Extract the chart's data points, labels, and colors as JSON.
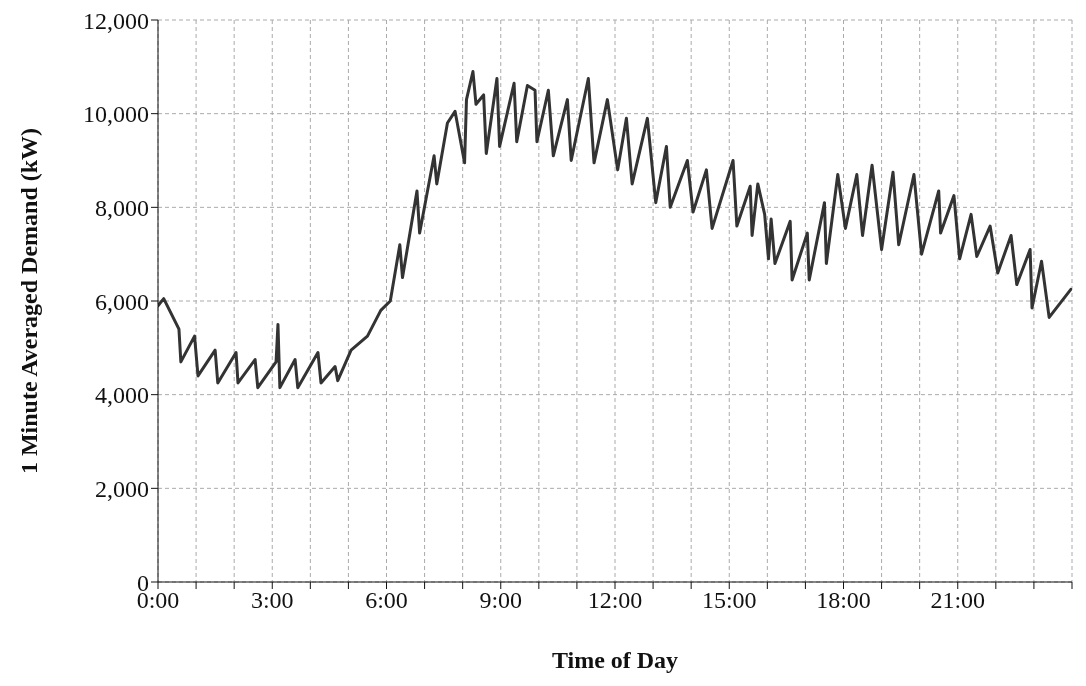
{
  "chart_data": {
    "type": "line",
    "xlabel": "Time of Day",
    "ylabel": "1 Minute Averaged Demand (kW)",
    "x": [
      0,
      0.15,
      0.55,
      0.6,
      0.96,
      1.05,
      1.5,
      1.57,
      2.05,
      2.1,
      2.55,
      2.62,
      3.1,
      3.15,
      3.2,
      3.6,
      3.67,
      4.2,
      4.28,
      4.65,
      4.72,
      5.07,
      5.5,
      5.85,
      6.1,
      6.35,
      6.42,
      6.8,
      6.87,
      7.25,
      7.32,
      7.6,
      7.8,
      8.05,
      8.1,
      8.27,
      8.35,
      8.55,
      8.62,
      8.9,
      8.97,
      9.35,
      9.42,
      9.7,
      9.9,
      9.95,
      10.25,
      10.38,
      10.75,
      10.85,
      11.3,
      11.45,
      11.8,
      12.07,
      12.3,
      12.45,
      12.85,
      13.07,
      13.35,
      13.45,
      13.9,
      14.05,
      14.4,
      14.55,
      15.1,
      15.2,
      15.55,
      15.6,
      15.75,
      15.93,
      16.03,
      16.1,
      16.2,
      16.6,
      16.65,
      17.05,
      17.1,
      17.5,
      17.55,
      17.85,
      18.05,
      18.35,
      18.5,
      18.75,
      19.0,
      19.3,
      19.45,
      19.85,
      20.05,
      20.5,
      20.55,
      20.9,
      21.05,
      21.35,
      21.5,
      21.85,
      22.05,
      22.4,
      22.55,
      22.9,
      22.95,
      23.2,
      23.4,
      23.97
    ],
    "series": [
      {
        "color": "#333333",
        "values": [
          5900,
          6050,
          5400,
          4700,
          5250,
          4400,
          4950,
          4250,
          4900,
          4250,
          4750,
          4150,
          4700,
          5500,
          4150,
          4750,
          4150,
          4900,
          4250,
          4600,
          4300,
          4950,
          5250,
          5800,
          6000,
          7200,
          6500,
          8350,
          7450,
          9100,
          8500,
          9800,
          10050,
          8950,
          10300,
          10900,
          10200,
          10400,
          9150,
          10750,
          9300,
          10650,
          9400,
          10600,
          10500,
          9400,
          10500,
          9100,
          10300,
          9000,
          10750,
          8950,
          10300,
          8800,
          9900,
          8500,
          9900,
          8100,
          9300,
          8000,
          9000,
          7900,
          8800,
          7550,
          9000,
          7600,
          8450,
          7400,
          8500,
          7850,
          6900,
          7750,
          6800,
          7700,
          6450,
          7450,
          6450,
          8100,
          6800,
          8700,
          7550,
          8700,
          7400,
          8900,
          7100,
          8750,
          7200,
          8700,
          7000,
          8350,
          7450,
          8250,
          6900,
          7850,
          6950,
          7600,
          6600,
          7400,
          6350,
          7100,
          5850,
          6850,
          5650,
          6250
        ]
      }
    ],
    "xlim": [
      0,
      24
    ],
    "xticks": [
      {
        "value": 0,
        "label": "0:00"
      },
      {
        "value": 1,
        "label": null
      },
      {
        "value": 2,
        "label": null
      },
      {
        "value": 3,
        "label": "3:00"
      },
      {
        "value": 4,
        "label": null
      },
      {
        "value": 5,
        "label": null
      },
      {
        "value": 6,
        "label": "6:00"
      },
      {
        "value": 7,
        "label": null
      },
      {
        "value": 8,
        "label": null
      },
      {
        "value": 9,
        "label": "9:00"
      },
      {
        "value": 10,
        "label": null
      },
      {
        "value": 11,
        "label": null
      },
      {
        "value": 12,
        "label": "12:00"
      },
      {
        "value": 13,
        "label": null
      },
      {
        "value": 14,
        "label": null
      },
      {
        "value": 15,
        "label": "15:00"
      },
      {
        "value": 16,
        "label": null
      },
      {
        "value": 17,
        "label": null
      },
      {
        "value": 18,
        "label": "18:00"
      },
      {
        "value": 19,
        "label": null
      },
      {
        "value": 20,
        "label": null
      },
      {
        "value": 21,
        "label": "21:00"
      },
      {
        "value": 22,
        "label": null
      },
      {
        "value": 23,
        "label": null
      },
      {
        "value": 24,
        "label": null
      }
    ],
    "ylim": [
      0,
      12000
    ],
    "yticks": [
      {
        "value": 0,
        "label": "0"
      },
      {
        "value": 2000,
        "label": "2,000"
      },
      {
        "value": 4000,
        "label": "4,000"
      },
      {
        "value": 6000,
        "label": "6,000"
      },
      {
        "value": 8000,
        "label": "8,000"
      },
      {
        "value": 10000,
        "label": "10,000"
      },
      {
        "value": 12000,
        "label": "12,000"
      }
    ],
    "grid": true,
    "legend": false,
    "marker": "none",
    "line_style": "solid"
  }
}
